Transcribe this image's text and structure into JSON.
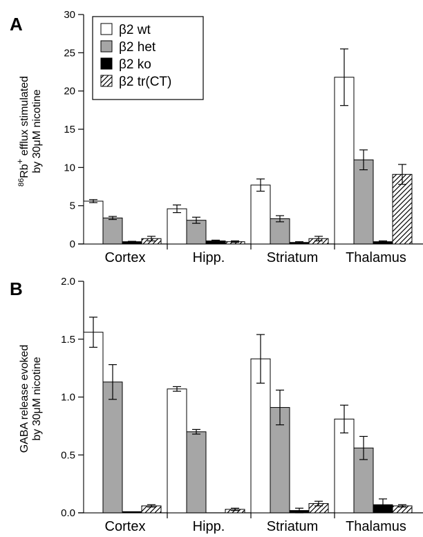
{
  "figure": {
    "panel_a_letter": "A",
    "panel_b_letter": "B"
  },
  "legend": {
    "entries": [
      {
        "label": "β2 wt",
        "fill": "#ffffff",
        "pattern": "none"
      },
      {
        "label": "β2 het",
        "fill": "#a6a6a6",
        "pattern": "none"
      },
      {
        "label": "β2 ko",
        "fill": "#000000",
        "pattern": "none"
      },
      {
        "label": "β2 tr(CT)",
        "fill": "#ffffff",
        "pattern": "hatch"
      }
    ]
  },
  "chart_data": [
    {
      "type": "bar",
      "panel": "A",
      "categories": [
        "Cortex",
        "Hipp.",
        "Striatum",
        "Thalamus"
      ],
      "ylabel_line1_sup": "86",
      "ylabel_line1_main": "Rb",
      "ylabel_line1_sup2": "+",
      "ylabel_line1_rest": " efflux stimulated",
      "ylabel_line2": "by 30μM nicotine",
      "ylim": [
        0,
        30
      ],
      "yticks": [
        0,
        5,
        10,
        15,
        20,
        25,
        30
      ],
      "ytick_labels": [
        "0",
        "5",
        "10",
        "15",
        "20",
        "25",
        "30"
      ],
      "legend_position": "top-left",
      "series": [
        {
          "name": "β2 wt",
          "values": [
            5.6,
            4.6,
            7.7,
            21.8
          ],
          "errors": [
            0.2,
            0.5,
            0.8,
            3.7
          ]
        },
        {
          "name": "β2 het",
          "values": [
            3.4,
            3.1,
            3.3,
            11.0
          ],
          "errors": [
            0.2,
            0.4,
            0.4,
            1.3
          ]
        },
        {
          "name": "β2 ko",
          "values": [
            0.3,
            0.4,
            0.2,
            0.3
          ],
          "errors": [
            0.05,
            0.1,
            0.1,
            0.1
          ]
        },
        {
          "name": "β2 tr(CT)",
          "values": [
            0.7,
            0.3,
            0.7,
            9.1
          ],
          "errors": [
            0.3,
            0.1,
            0.3,
            1.3
          ]
        }
      ]
    },
    {
      "type": "bar",
      "panel": "B",
      "categories": [
        "Cortex",
        "Hipp.",
        "Striatum",
        "Thalamus"
      ],
      "ylabel_line1": "GABA release evoked",
      "ylabel_line2": "by 30μM nicotine",
      "ylim": [
        0,
        2.0
      ],
      "yticks": [
        0,
        0.5,
        1.0,
        1.5,
        2.0
      ],
      "ytick_labels": [
        "0.0",
        "0.5",
        "1.0",
        "1.5",
        "2.0"
      ],
      "series": [
        {
          "name": "β2 wt",
          "values": [
            1.56,
            1.07,
            1.33,
            0.81
          ],
          "errors": [
            0.13,
            0.02,
            0.21,
            0.12
          ]
        },
        {
          "name": "β2 het",
          "values": [
            1.13,
            0.7,
            0.91,
            0.56
          ],
          "errors": [
            0.15,
            0.02,
            0.15,
            0.1
          ]
        },
        {
          "name": "β2 ko",
          "values": [
            0.01,
            0.0,
            0.02,
            0.07
          ],
          "errors": [
            0.0,
            0.0,
            0.02,
            0.05
          ]
        },
        {
          "name": "β2 tr(CT)",
          "values": [
            0.06,
            0.03,
            0.08,
            0.06
          ],
          "errors": [
            0.01,
            0.01,
            0.02,
            0.01
          ]
        }
      ]
    }
  ]
}
